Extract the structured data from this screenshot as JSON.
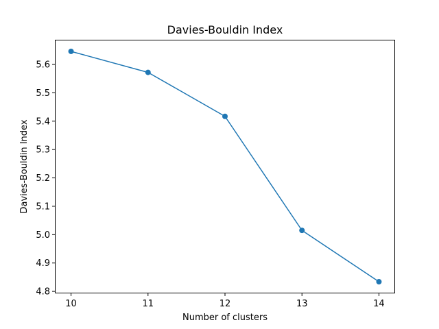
{
  "chart_data": {
    "type": "line",
    "title": "Davies-Bouldin Index",
    "xlabel": "Number of clusters",
    "ylabel": "Davies-Bouldin Index",
    "x": [
      10,
      11,
      12,
      13,
      14
    ],
    "series": [
      {
        "values": [
          5.646,
          5.572,
          5.417,
          5.015,
          4.834
        ],
        "color": "#1f77b4",
        "marker": "circle"
      }
    ],
    "xlim": [
      9.79,
      14.21
    ],
    "ylim": [
      4.793,
      5.687
    ],
    "xticks": [
      "10",
      "11",
      "12",
      "13",
      "14"
    ],
    "yticks": [
      "4.8",
      "4.9",
      "5.0",
      "5.1",
      "5.2",
      "5.3",
      "5.4",
      "5.5",
      "5.6"
    ],
    "grid": false,
    "legend": false
  }
}
